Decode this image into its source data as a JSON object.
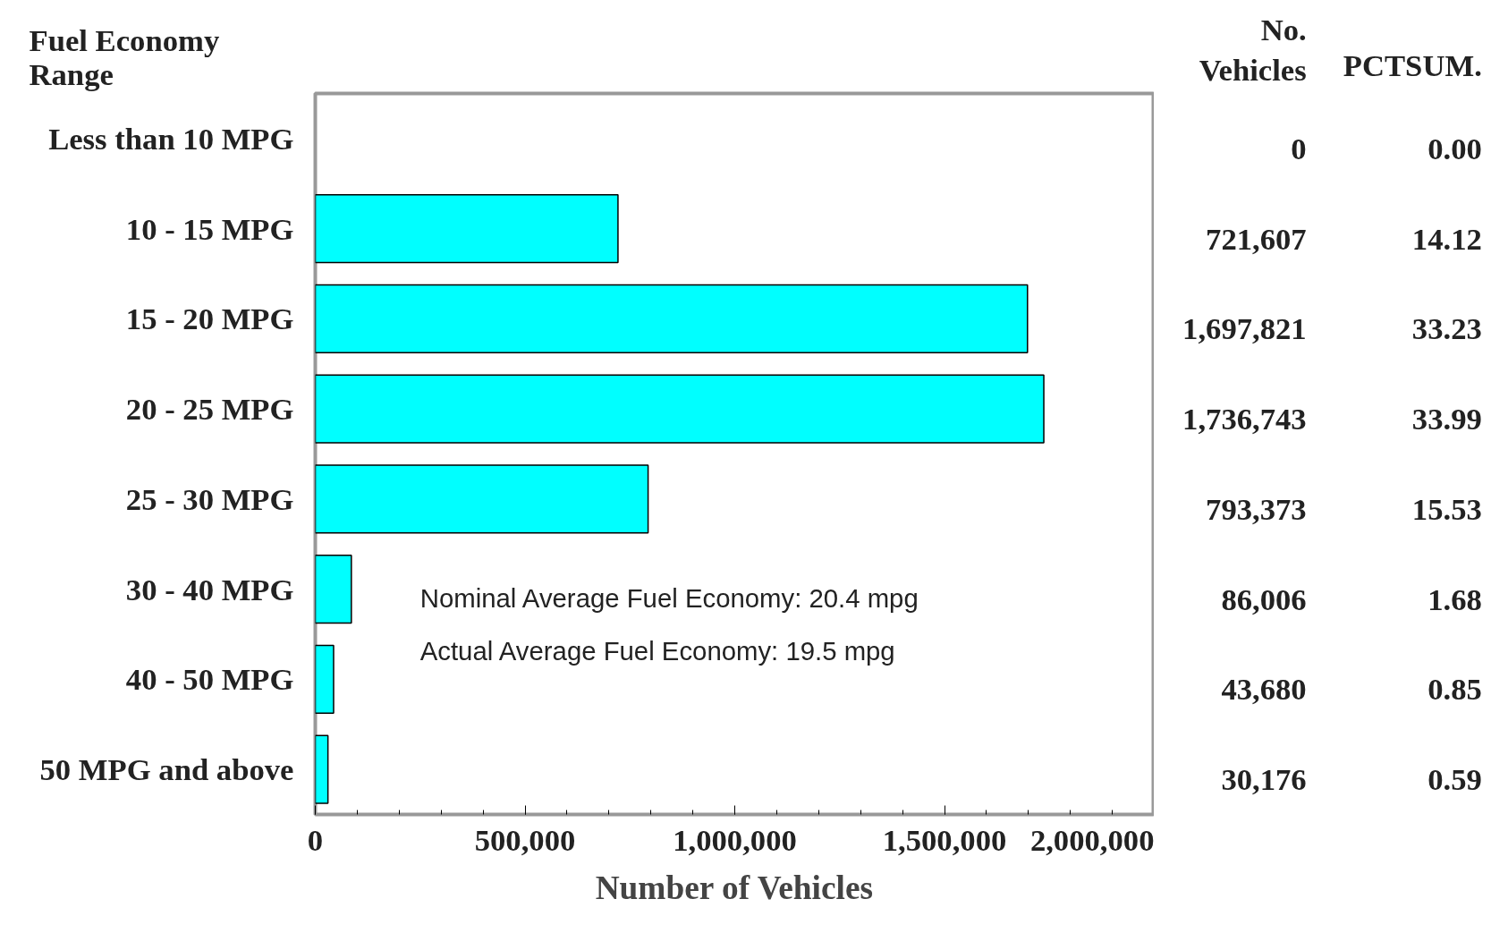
{
  "chart_data": {
    "type": "bar",
    "orientation": "horizontal",
    "xlabel": "Number of Vehicles",
    "ylabel": "Fuel Economy Range",
    "categories": [
      "Less than 10 MPG",
      "10 - 15 MPG",
      "15 - 20 MPG",
      "20 - 25 MPG",
      "25 - 30 MPG",
      "30 - 40 MPG",
      "40 - 50 MPG",
      "50 MPG and above"
    ],
    "values": [
      0,
      721607,
      1697821,
      1736743,
      793373,
      86006,
      43680,
      30176
    ],
    "value_labels": [
      "0",
      "721,607",
      "1,697,821",
      "1,736,743",
      "793,373",
      "86,006",
      "43,680",
      "30,176"
    ],
    "color": "#00ffff",
    "xlim": [
      0,
      2000000
    ],
    "xticks": [
      {
        "value": 0,
        "label": "0"
      },
      {
        "value": 500000,
        "label": "500,000"
      },
      {
        "value": 1000000,
        "label": "1,000,000"
      },
      {
        "value": 1500000,
        "label": "1,500,000"
      },
      {
        "value": 2000000,
        "label": "2,000,000"
      }
    ],
    "grid": false,
    "annotations": [
      "No. Vehicles",
      "PCTSUM.",
      "0.00",
      "14.12",
      "33.23",
      "33.99",
      "15.53",
      "1.68",
      "0.85",
      "0.59",
      "Nominal Average Fuel Economy: 20.4 mpg",
      "Actual Average Fuel Economy: 19.5 mpg"
    ]
  }
}
